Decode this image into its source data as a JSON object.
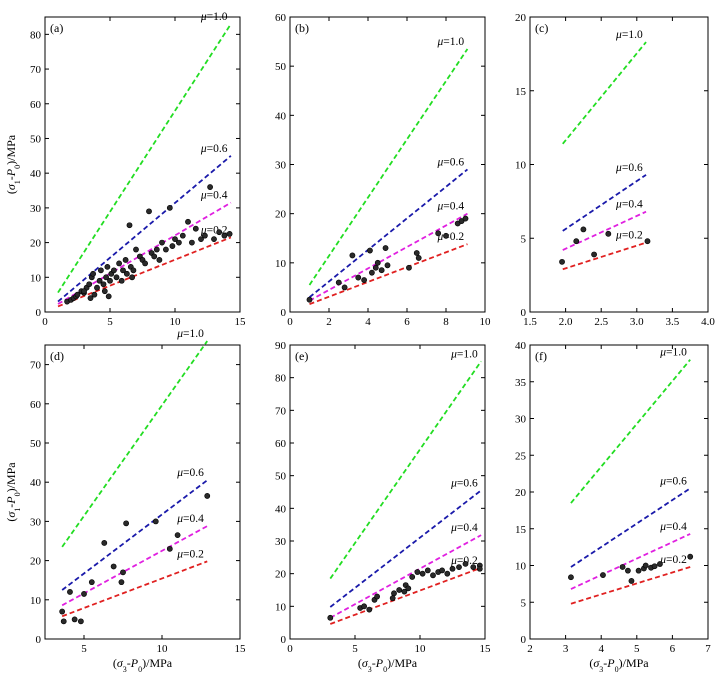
{
  "figure": {
    "ylabel": "(σ1-P0)/MPa",
    "xlabel": "(σ3-P0)/MPa",
    "colors": {
      "mu_1_0": "#22dd22",
      "mu_0_6": "#1a1aaa",
      "mu_0_4": "#e020e0",
      "mu_0_2": "#e02020",
      "axis": "#000000"
    }
  },
  "chart_data": [
    {
      "type": "scatter",
      "panel": "(a)",
      "xlim": [
        0,
        15
      ],
      "ylim": [
        0,
        85
      ],
      "xticks": [
        0,
        5,
        10,
        15
      ],
      "yticks": [
        0,
        10,
        20,
        30,
        40,
        50,
        60,
        70,
        80
      ],
      "xlabel": "",
      "ylabel": "(σ1-P0)/MPa",
      "lines": [
        {
          "mu": "μ=1.0",
          "x": [
            1,
            14.3
          ],
          "y": [
            5.6,
            83
          ]
        },
        {
          "mu": "μ=0.6",
          "x": [
            1,
            14.3
          ],
          "y": [
            3,
            45
          ]
        },
        {
          "mu": "μ=0.4",
          "x": [
            1,
            14.3
          ],
          "y": [
            2.3,
            31.5
          ]
        },
        {
          "mu": "μ=0.2",
          "x": [
            1,
            14.3
          ],
          "y": [
            1.6,
            21.5
          ]
        }
      ],
      "points": [
        [
          1.7,
          3
        ],
        [
          2,
          3.5
        ],
        [
          2.2,
          4
        ],
        [
          2.4,
          4.5
        ],
        [
          2.5,
          5
        ],
        [
          2.8,
          6
        ],
        [
          3,
          5.5
        ],
        [
          3.2,
          7
        ],
        [
          3.4,
          8
        ],
        [
          3.5,
          4
        ],
        [
          3.6,
          10
        ],
        [
          3.7,
          11
        ],
        [
          3.8,
          5
        ],
        [
          4,
          7
        ],
        [
          4.2,
          9
        ],
        [
          4.3,
          12
        ],
        [
          4.5,
          8
        ],
        [
          4.6,
          6
        ],
        [
          4.7,
          10
        ],
        [
          4.8,
          13
        ],
        [
          5,
          9
        ],
        [
          5.1,
          11
        ],
        [
          5.3,
          12
        ],
        [
          5.5,
          10
        ],
        [
          5.7,
          14
        ],
        [
          5.9,
          9
        ],
        [
          6,
          12
        ],
        [
          6.2,
          15
        ],
        [
          6.3,
          11
        ],
        [
          6.5,
          25
        ],
        [
          6.6,
          13
        ],
        [
          6.8,
          12
        ],
        [
          7,
          18
        ],
        [
          7.3,
          16
        ],
        [
          7.5,
          15
        ],
        [
          7.7,
          14
        ],
        [
          8,
          29
        ],
        [
          8.2,
          17
        ],
        [
          8.4,
          16
        ],
        [
          8.6,
          18
        ],
        [
          8.8,
          15
        ],
        [
          9,
          20
        ],
        [
          9.3,
          18
        ],
        [
          9.6,
          30
        ],
        [
          9.8,
          19
        ],
        [
          10,
          21
        ],
        [
          10.3,
          20
        ],
        [
          10.6,
          22
        ],
        [
          11,
          26
        ],
        [
          11.3,
          20
        ],
        [
          11.6,
          24
        ],
        [
          12,
          21
        ],
        [
          12.3,
          22
        ],
        [
          12.7,
          36
        ],
        [
          13,
          21
        ],
        [
          13.4,
          23
        ],
        [
          13.8,
          22
        ],
        [
          14.2,
          22.5
        ],
        [
          3,
          6
        ],
        [
          4.9,
          4.5
        ],
        [
          6.7,
          10
        ]
      ]
    },
    {
      "type": "scatter",
      "panel": "(b)",
      "xlim": [
        0,
        10
      ],
      "ylim": [
        0,
        60
      ],
      "xticks": [
        0,
        2,
        4,
        6,
        8,
        10
      ],
      "yticks": [
        0,
        10,
        20,
        30,
        40,
        50,
        60
      ],
      "xlabel": "",
      "ylabel": "",
      "lines": [
        {
          "mu": "μ=1.0",
          "x": [
            1,
            9.1
          ],
          "y": [
            5.5,
            53.5
          ]
        },
        {
          "mu": "μ=0.6",
          "x": [
            1,
            9.1
          ],
          "y": [
            3,
            29
          ]
        },
        {
          "mu": "μ=0.4",
          "x": [
            1,
            9.1
          ],
          "y": [
            2.3,
            20
          ]
        },
        {
          "mu": "μ=0.2",
          "x": [
            1,
            9.1
          ],
          "y": [
            1.6,
            13.8
          ]
        }
      ],
      "points": [
        [
          1,
          2.5
        ],
        [
          2.5,
          6
        ],
        [
          2.8,
          5
        ],
        [
          3.2,
          11.5
        ],
        [
          3.5,
          7
        ],
        [
          3.8,
          6.5
        ],
        [
          4.1,
          12.5
        ],
        [
          4.2,
          8
        ],
        [
          4.4,
          9
        ],
        [
          4.5,
          10
        ],
        [
          4.7,
          8.5
        ],
        [
          4.9,
          13
        ],
        [
          5,
          9.5
        ],
        [
          6.1,
          9
        ],
        [
          6.5,
          12
        ],
        [
          6.6,
          11
        ],
        [
          7.6,
          16
        ],
        [
          8,
          15.5
        ],
        [
          8.6,
          18
        ],
        [
          8.8,
          18.5
        ],
        [
          9,
          19
        ]
      ]
    },
    {
      "type": "scatter",
      "panel": "(c)",
      "xlim": [
        1.5,
        4.0
      ],
      "ylim": [
        0,
        20
      ],
      "xticks": [
        1.5,
        2.0,
        2.5,
        3.0,
        3.5,
        4.0
      ],
      "yticks": [
        0,
        5,
        10,
        15,
        20
      ],
      "xlabel": "",
      "ylabel": "",
      "lines": [
        {
          "mu": "μ=1.0",
          "x": [
            1.96,
            3.13
          ],
          "y": [
            11.4,
            18.3
          ]
        },
        {
          "mu": "μ=0.6",
          "x": [
            1.96,
            3.13
          ],
          "y": [
            5.5,
            9.3
          ]
        },
        {
          "mu": "μ=0.4",
          "x": [
            1.96,
            3.13
          ],
          "y": [
            4.2,
            6.8
          ]
        },
        {
          "mu": "μ=0.2",
          "x": [
            1.96,
            3.13
          ],
          "y": [
            2.9,
            4.7
          ]
        }
      ],
      "points": [
        [
          1.95,
          3.4
        ],
        [
          2.15,
          4.8
        ],
        [
          2.25,
          5.6
        ],
        [
          2.4,
          3.9
        ],
        [
          2.6,
          5.3
        ],
        [
          3.15,
          4.8
        ]
      ]
    },
    {
      "type": "scatter",
      "panel": "(d)",
      "xlim": [
        2.5,
        15
      ],
      "ylim": [
        0,
        75
      ],
      "xticks": [
        5,
        10,
        15
      ],
      "yticks": [
        0,
        10,
        20,
        30,
        40,
        50,
        60,
        70
      ],
      "xlabel": "(σ3-P0)/MPa",
      "ylabel": "(σ1-P0)/MPa",
      "lines": [
        {
          "mu": "μ=1.0",
          "x": [
            3.6,
            12.9
          ],
          "y": [
            23.5,
            76
          ]
        },
        {
          "mu": "μ=0.6",
          "x": [
            3.6,
            12.9
          ],
          "y": [
            12.5,
            40.5
          ]
        },
        {
          "mu": "μ=0.4",
          "x": [
            3.6,
            12.9
          ],
          "y": [
            8.6,
            28.8
          ]
        },
        {
          "mu": "μ=0.2",
          "x": [
            3.6,
            12.9
          ],
          "y": [
            5.8,
            19.8
          ]
        }
      ],
      "points": [
        [
          3.6,
          7
        ],
        [
          3.7,
          4.5
        ],
        [
          4.1,
          12
        ],
        [
          4.4,
          5
        ],
        [
          4.8,
          4.5
        ],
        [
          5,
          11.5
        ],
        [
          5.5,
          14.5
        ],
        [
          6.3,
          24.5
        ],
        [
          6.9,
          18.5
        ],
        [
          7.4,
          14.5
        ],
        [
          7.5,
          17
        ],
        [
          7.7,
          29.5
        ],
        [
          9.6,
          30
        ],
        [
          10.5,
          23
        ],
        [
          11,
          26.5
        ],
        [
          12.9,
          36.5
        ]
      ]
    },
    {
      "type": "scatter",
      "panel": "(e)",
      "xlim": [
        0,
        15
      ],
      "ylim": [
        0,
        90
      ],
      "xticks": [
        0,
        5,
        10,
        15
      ],
      "yticks": [
        0,
        10,
        20,
        30,
        40,
        50,
        60,
        70,
        80,
        90
      ],
      "xlabel": "(σ3-P0)/MPa",
      "ylabel": "",
      "lines": [
        {
          "mu": "μ=1.0",
          "x": [
            3.1,
            14.7
          ],
          "y": [
            18.5,
            85
          ]
        },
        {
          "mu": "μ=0.6",
          "x": [
            3.1,
            14.7
          ],
          "y": [
            9.8,
            45.5
          ]
        },
        {
          "mu": "μ=0.4",
          "x": [
            3.1,
            14.7
          ],
          "y": [
            6.5,
            31.8
          ]
        },
        {
          "mu": "μ=0.2",
          "x": [
            3.1,
            14.7
          ],
          "y": [
            4.6,
            21.8
          ]
        }
      ],
      "points": [
        [
          3.1,
          6.5
        ],
        [
          5.4,
          9.5
        ],
        [
          5.7,
          10
        ],
        [
          6.1,
          9
        ],
        [
          6.5,
          12
        ],
        [
          6.7,
          13
        ],
        [
          7.9,
          12.5
        ],
        [
          8,
          14
        ],
        [
          8.4,
          15
        ],
        [
          8.8,
          14.5
        ],
        [
          8.9,
          16.5
        ],
        [
          9.1,
          15.5
        ],
        [
          9.4,
          19
        ],
        [
          9.8,
          20.5
        ],
        [
          10.2,
          20
        ],
        [
          10.6,
          21
        ],
        [
          11,
          19.5
        ],
        [
          11.4,
          20.5
        ],
        [
          11.7,
          21
        ],
        [
          12.1,
          20
        ],
        [
          12.5,
          21.5
        ],
        [
          13,
          22
        ],
        [
          13.5,
          23
        ],
        [
          14.1,
          22
        ],
        [
          14.6,
          22.5
        ],
        [
          14.6,
          21.5
        ]
      ]
    },
    {
      "type": "scatter",
      "panel": "(f)",
      "xlim": [
        2,
        7
      ],
      "ylim": [
        0,
        40
      ],
      "xticks": [
        2,
        3,
        4,
        5,
        6,
        7
      ],
      "yticks": [
        0,
        5,
        10,
        15,
        20,
        25,
        30,
        35,
        40
      ],
      "xlabel": "(σ3-P0)/MPa",
      "ylabel": "",
      "lines": [
        {
          "mu": "μ=1.0",
          "x": [
            3.15,
            6.5
          ],
          "y": [
            18.5,
            38
          ]
        },
        {
          "mu": "μ=0.6",
          "x": [
            3.15,
            6.5
          ],
          "y": [
            9.8,
            20.5
          ]
        },
        {
          "mu": "μ=0.4",
          "x": [
            3.15,
            6.5
          ],
          "y": [
            6.8,
            14.3
          ]
        },
        {
          "mu": "μ=0.2",
          "x": [
            3.15,
            6.5
          ],
          "y": [
            4.8,
            9.8
          ]
        }
      ],
      "points": [
        [
          3.15,
          8.4
        ],
        [
          4.05,
          8.7
        ],
        [
          4.6,
          9.8
        ],
        [
          4.75,
          9.3
        ],
        [
          4.85,
          7.9
        ],
        [
          5.05,
          9.3
        ],
        [
          5.2,
          9.6
        ],
        [
          5.25,
          10
        ],
        [
          5.4,
          9.7
        ],
        [
          5.5,
          9.9
        ],
        [
          5.65,
          10.2
        ],
        [
          6.5,
          11.2
        ]
      ]
    }
  ]
}
